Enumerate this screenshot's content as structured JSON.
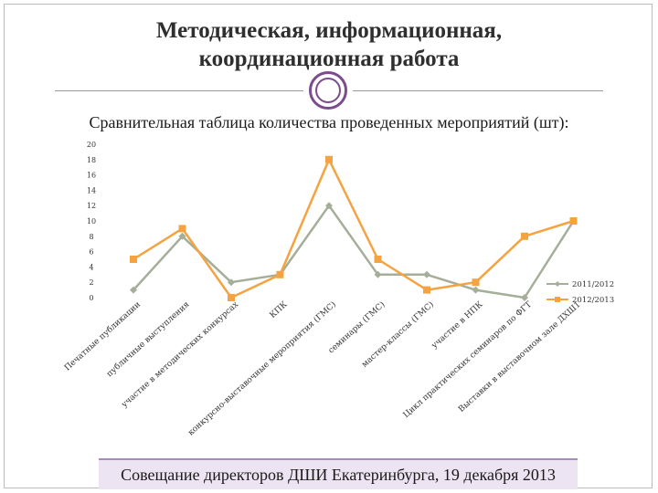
{
  "slide": {
    "title_line1": "Методическая, информационная,",
    "title_line2": "координационная работа",
    "subtitle": "Сравнительная таблица количества проведенных мероприятий (шт):",
    "footer": "Совещание директоров ДШИ Екатеринбурга, 19 декабря 2013"
  },
  "chart_data": {
    "type": "line",
    "title": "Сравнительная таблица количества проведенных мероприятий (шт):",
    "xlabel": "",
    "ylabel": "",
    "ylim": [
      0,
      20
    ],
    "yticks": [
      0,
      2,
      4,
      6,
      8,
      10,
      12,
      14,
      16,
      18,
      20
    ],
    "grid": false,
    "legend_position": "right",
    "categories": [
      "Печатные публикации",
      "публичные выступления",
      "участие в методических конкурсах",
      "КПК",
      "конкурсно-выставочные мероприятия (ГМС)",
      "семинары (ГМС)",
      "мастер-классы (ГМС)",
      "участие в НПК",
      "Цикл практических семинаров по ФГТ",
      "Выставки в выставочном зале ДХШ1"
    ],
    "series": [
      {
        "name": "2011/2012",
        "color": "#a4ae98",
        "marker": "diamond",
        "values": [
          1,
          8,
          2,
          3,
          12,
          3,
          3,
          1,
          0,
          10
        ]
      },
      {
        "name": "2012/2013",
        "color": "#f5a340",
        "marker": "square",
        "values": [
          5,
          9,
          0,
          3,
          18,
          5,
          1,
          2,
          8,
          10
        ]
      }
    ]
  }
}
